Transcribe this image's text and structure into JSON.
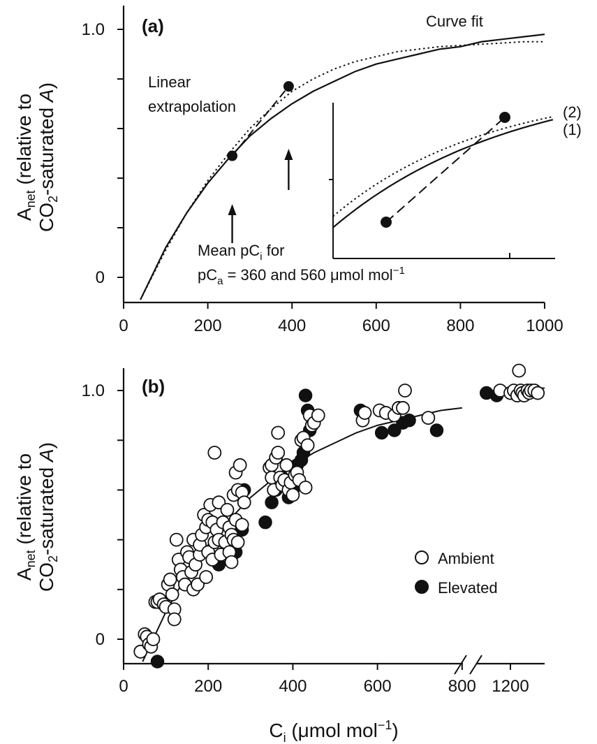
{
  "chart_data": [
    {
      "panel": "(a)",
      "type": "line",
      "ylabel": "A_net (relative to CO2-saturated A)",
      "xlim": [
        0,
        1000
      ],
      "ylim": [
        -0.09,
        1.09
      ],
      "x_ticks": [
        "0",
        "200",
        "400",
        "600",
        "800",
        "1000"
      ],
      "y_ticks": [
        "0",
        "1.0"
      ],
      "grid": false,
      "series": [
        {
          "name": "Curve fit",
          "style": "solid",
          "x": [
            40,
            100,
            150,
            200,
            250,
            300,
            350,
            400,
            450,
            500,
            550,
            600,
            650,
            700,
            750,
            800,
            850,
            900,
            950,
            1000
          ],
          "y": [
            -0.09,
            0.12,
            0.26,
            0.38,
            0.48,
            0.57,
            0.64,
            0.7,
            0.75,
            0.79,
            0.83,
            0.86,
            0.88,
            0.9,
            0.92,
            0.93,
            0.95,
            0.96,
            0.97,
            0.98
          ]
        },
        {
          "style": "dotted",
          "x": [
            40,
            100,
            150,
            200,
            250,
            300,
            350,
            400,
            450,
            500,
            550,
            600,
            650,
            700,
            750,
            800,
            850,
            900,
            950,
            1000
          ],
          "y": [
            -0.09,
            0.11,
            0.26,
            0.39,
            0.5,
            0.6,
            0.68,
            0.75,
            0.8,
            0.84,
            0.87,
            0.89,
            0.91,
            0.92,
            0.93,
            0.935,
            0.94,
            0.945,
            0.95,
            0.95
          ]
        },
        {
          "name": "Linear extrapolation",
          "style": "dashed",
          "x": [
            258,
            392
          ],
          "y": [
            0.49,
            0.77
          ]
        }
      ],
      "points": [
        {
          "x": 258,
          "y": 0.49
        },
        {
          "x": 392,
          "y": 0.77
        }
      ],
      "arrows_at_x": [
        258,
        392
      ],
      "annotations": {
        "curve_fit": "Curve fit",
        "linear_1": "Linear",
        "linear_2": "extrapolation",
        "mean_1": "Mean pC",
        "mean_1_sub": "i",
        "mean_1_tail": "  for",
        "mean_2_a": "pC",
        "mean_2_sub": "a",
        "mean_2_b": " = 360 and 560 μmol mol",
        "mean_2_sup": "−1"
      },
      "inset": {
        "labels": [
          "(1)",
          "(2)"
        ],
        "points": [
          {
            "x": 258,
            "y": 0.49
          },
          {
            "x": 392,
            "y": 0.77
          }
        ]
      }
    },
    {
      "panel": "(b)",
      "type": "scatter",
      "xlabel": "C_i (μmol mol−1)",
      "ylabel": "A_net (relative to CO2-saturated A)",
      "xlim": [
        0,
        1300
      ],
      "ylim": [
        -0.1,
        1.1
      ],
      "x_ticks": [
        "0",
        "200",
        "400",
        "600",
        "800",
        "1200"
      ],
      "y_ticks": [
        "0",
        "1.0"
      ],
      "x_axis_break": "between 800 and 1200",
      "grid": false,
      "legend_position": "right",
      "series": [
        {
          "name": "Ambient",
          "marker": "open-circle",
          "x": [
            40,
            50,
            55,
            60,
            65,
            70,
            75,
            80,
            85,
            95,
            100,
            105,
            110,
            115,
            120,
            120,
            125,
            130,
            135,
            140,
            145,
            150,
            155,
            160,
            165,
            165,
            170,
            175,
            180,
            180,
            185,
            190,
            195,
            195,
            200,
            200,
            205,
            210,
            210,
            215,
            215,
            220,
            225,
            225,
            230,
            235,
            240,
            245,
            250,
            250,
            255,
            255,
            260,
            260,
            265,
            265,
            270,
            270,
            275,
            280,
            280,
            285,
            345,
            350,
            350,
            355,
            360,
            365,
            365,
            370,
            375,
            380,
            385,
            390,
            395,
            400,
            405,
            410,
            415,
            420,
            425,
            430,
            435,
            440,
            445,
            450,
            460,
            565,
            570,
            605,
            620,
            640,
            650,
            660,
            665,
            720,
            1170,
            1200,
            1210,
            1220,
            1225,
            1230,
            1235,
            1240,
            1250,
            1255,
            1260,
            1270,
            1280
          ],
          "y": [
            -0.05,
            0.02,
            0.01,
            -0.02,
            -0.03,
            0.0,
            0.15,
            0.15,
            0.16,
            0.14,
            0.13,
            0.22,
            0.24,
            0.18,
            0.12,
            0.08,
            0.4,
            0.32,
            0.28,
            0.25,
            0.22,
            0.35,
            0.33,
            0.27,
            0.4,
            0.2,
            0.3,
            0.22,
            0.34,
            0.38,
            0.42,
            0.5,
            0.45,
            0.25,
            0.48,
            0.35,
            0.54,
            0.47,
            0.32,
            0.75,
            0.39,
            0.44,
            0.55,
            0.4,
            0.34,
            0.47,
            0.39,
            0.52,
            0.45,
            0.35,
            0.42,
            0.31,
            0.58,
            0.4,
            0.67,
            0.48,
            0.6,
            0.39,
            0.7,
            0.59,
            0.46,
            0.55,
            0.69,
            0.7,
            0.65,
            0.6,
            0.73,
            0.75,
            0.83,
            0.65,
            0.62,
            0.64,
            0.7,
            0.6,
            0.63,
            0.58,
            0.66,
            0.67,
            0.64,
            0.8,
            0.81,
            0.61,
            0.78,
            0.9,
            0.86,
            0.87,
            0.9,
            0.88,
            0.91,
            0.92,
            0.91,
            0.9,
            0.93,
            0.93,
            1.0,
            0.89,
            1.0,
            0.99,
            1.0,
            0.98,
            1.08,
            1.0,
            0.99,
            0.98,
            1.0,
            0.99,
            1.0,
            1.0,
            0.99
          ]
        },
        {
          "name": "Elevated",
          "marker": "filled-circle",
          "x": [
            80,
            225,
            240,
            265,
            280,
            285,
            335,
            350,
            360,
            370,
            375,
            380,
            390,
            400,
            410,
            420,
            425,
            430,
            435,
            440,
            560,
            610,
            640,
            660,
            675,
            740,
            1130,
            1160,
            1240
          ],
          "y": [
            -0.09,
            0.3,
            0.35,
            0.35,
            0.44,
            0.6,
            0.47,
            0.55,
            0.6,
            0.62,
            0.65,
            0.63,
            0.57,
            0.6,
            0.7,
            0.72,
            0.75,
            0.98,
            0.92,
            0.84,
            0.92,
            0.83,
            0.84,
            0.87,
            0.88,
            0.84,
            0.99,
            0.98,
            0.99
          ]
        },
        {
          "name": "fit",
          "style": "solid",
          "x": [
            45,
            100,
            150,
            200,
            250,
            300,
            350,
            400,
            450,
            500,
            550,
            600,
            650,
            700,
            750,
            800,
            1150,
            1300
          ],
          "y": [
            -0.09,
            0.11,
            0.26,
            0.38,
            0.48,
            0.57,
            0.64,
            0.7,
            0.75,
            0.79,
            0.83,
            0.86,
            0.88,
            0.9,
            0.92,
            0.93,
            1.0,
            1.01
          ]
        }
      ],
      "legend": [
        "Ambient",
        "Elevated"
      ],
      "xlabel_parts": {
        "main": "C",
        "sub": "i",
        "tail": " (μmol mol",
        "sup": "−1",
        "end": ")"
      }
    }
  ],
  "ylabel_parts": {
    "line1_a": "A",
    "line1_sub": "net",
    "line1_b": " (relative to",
    "line2_a": "CO",
    "line2_sub": "2",
    "line2_b": "-saturated ",
    "line2_c": "A",
    "line2_d": ")"
  }
}
